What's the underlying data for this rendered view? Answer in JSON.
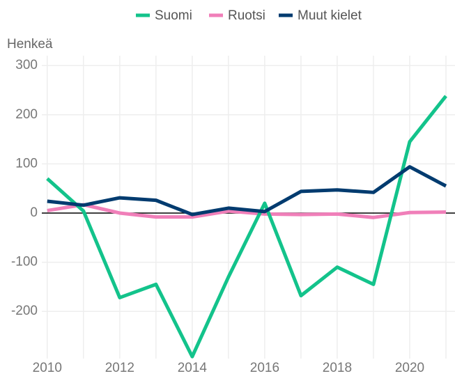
{
  "chart_data": {
    "type": "line",
    "y_label": "Henkeä",
    "x": [
      2010,
      2011,
      2012,
      2013,
      2014,
      2015,
      2016,
      2017,
      2018,
      2019,
      2020,
      2021
    ],
    "series": [
      {
        "name": "Suomi",
        "color": "#13c38b",
        "values": [
          70,
          4,
          -172,
          -145,
          -292,
          -130,
          20,
          -168,
          -110,
          -145,
          145,
          238
        ]
      },
      {
        "name": "Ruotsi",
        "color": "#f07fb9",
        "values": [
          5,
          17,
          0,
          -8,
          -8,
          4,
          -2,
          -3,
          -2,
          -9,
          1,
          2
        ]
      },
      {
        "name": "Muut kielet",
        "color": "#003b6f",
        "values": [
          24,
          16,
          31,
          26,
          -3,
          10,
          3,
          44,
          47,
          42,
          94,
          55
        ]
      }
    ],
    "xlim": [
      2009.85,
      2021.25
    ],
    "xticks": [
      2010,
      2012,
      2014,
      2016,
      2018,
      2020
    ],
    "x_minor_ticks": [
      2011,
      2013,
      2015,
      2017,
      2019,
      2021
    ],
    "ylim": [
      -296,
      320
    ],
    "yticks": [
      -200,
      -100,
      0,
      100,
      200,
      300
    ],
    "grid": true,
    "legend": "top"
  }
}
